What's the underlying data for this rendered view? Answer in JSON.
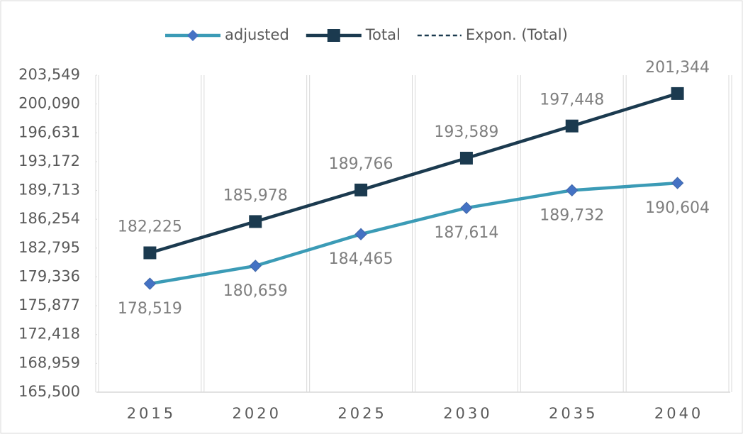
{
  "chart_data": {
    "type": "line",
    "categories": [
      "2015",
      "2020",
      "2025",
      "2030",
      "2035",
      "2040"
    ],
    "series": [
      {
        "name": "adjusted",
        "color": "#3b9bb6",
        "marker": "diamond",
        "marker_color": "#4472c4",
        "label_position": "below",
        "values": [
          178519,
          180659,
          184465,
          187614,
          189732,
          190604
        ],
        "value_labels": [
          "178,519",
          "180,659",
          "184,465",
          "187,614",
          "189,732",
          "190,604"
        ]
      },
      {
        "name": "Total",
        "color": "#1b3a4f",
        "marker": "square",
        "marker_color": "#1b3a4f",
        "label_position": "above",
        "values": [
          182225,
          185978,
          189766,
          193589,
          197448,
          201344
        ],
        "value_labels": [
          "182,225",
          "185,978",
          "189,766",
          "193,589",
          "197,448",
          "201,344"
        ]
      }
    ],
    "trendline": {
      "name": "Expon. (Total)",
      "kind": "exponential",
      "of_series": 1,
      "color": "#1b3a4f",
      "dashed": true
    },
    "ylim": [
      165500,
      203549
    ],
    "yticks": [
      {
        "value": 165500,
        "label": "165,500"
      },
      {
        "value": 168959,
        "label": "168,959"
      },
      {
        "value": 172418,
        "label": "172,418"
      },
      {
        "value": 175877,
        "label": "175,877"
      },
      {
        "value": 179336,
        "label": "179,336"
      },
      {
        "value": 182795,
        "label": "182,795"
      },
      {
        "value": 186254,
        "label": "186,254"
      },
      {
        "value": 189713,
        "label": "189,713"
      },
      {
        "value": 193172,
        "label": "193,172"
      },
      {
        "value": 196631,
        "label": "196,631"
      },
      {
        "value": 200090,
        "label": "200,090"
      },
      {
        "value": 203549,
        "label": "203,549"
      }
    ],
    "legend": "top"
  }
}
